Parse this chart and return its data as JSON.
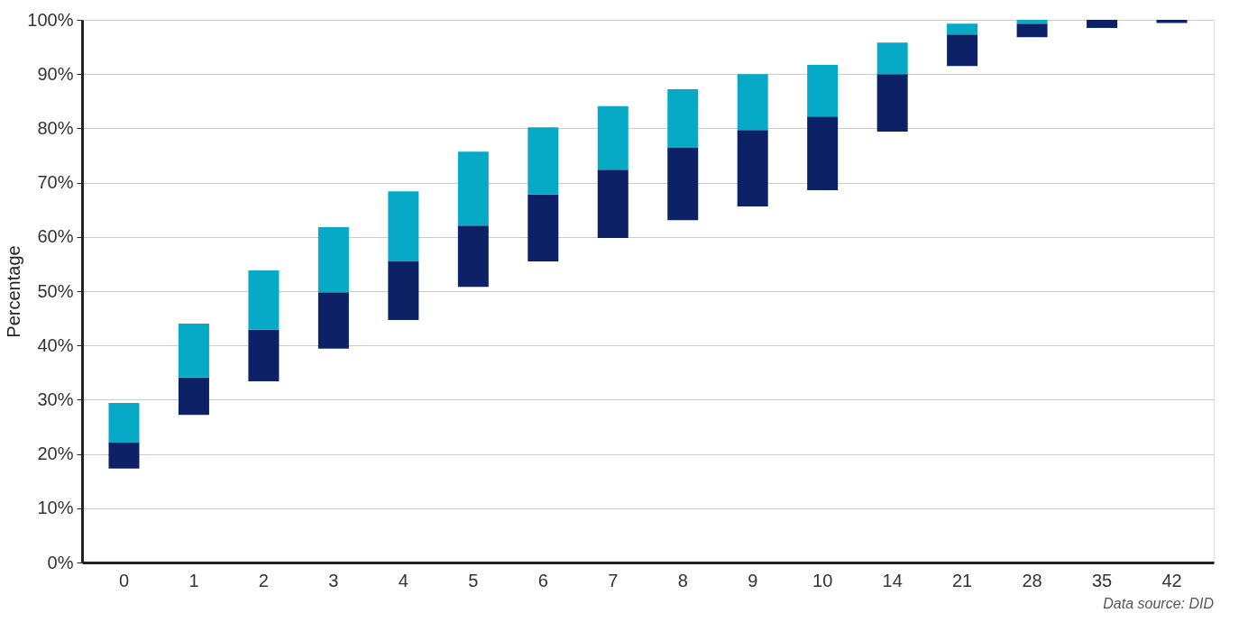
{
  "chart_data": {
    "type": "bar",
    "ylabel": "Percentage",
    "categories": [
      "0",
      "1",
      "2",
      "3",
      "4",
      "5",
      "6",
      "7",
      "8",
      "9",
      "10",
      "14",
      "21",
      "28",
      "35",
      "42"
    ],
    "series": [
      {
        "color": "#0d2167",
        "base": [
          17.3,
          27.2,
          33.4,
          39.4,
          44.7,
          50.8,
          55.5,
          59.8,
          63.1,
          65.6,
          68.6,
          79.4,
          91.5,
          96.8,
          98.5,
          99.4
        ],
        "values": [
          4.8,
          6.9,
          9.5,
          10.4,
          10.8,
          11.3,
          12.3,
          12.6,
          13.3,
          14.1,
          13.6,
          10.6,
          5.8,
          2.5,
          1.5,
          0.6
        ]
      },
      {
        "color": "#06aac7",
        "base": [
          22.1,
          34.1,
          42.9,
          49.8,
          55.5,
          62.1,
          67.8,
          72.4,
          76.4,
          79.7,
          82.2,
          90.0,
          97.3,
          99.3,
          null,
          null
        ],
        "values": [
          7.3,
          9.9,
          10.9,
          12.0,
          12.9,
          13.6,
          12.4,
          11.7,
          10.8,
          10.3,
          9.5,
          5.8,
          2.0,
          0.7,
          null,
          null
        ]
      }
    ],
    "ylim": [
      0,
      100
    ],
    "yticks": [
      {
        "value": 0,
        "label": "0%"
      },
      {
        "value": 10,
        "label": "10%"
      },
      {
        "value": 20,
        "label": "20%"
      },
      {
        "value": 30,
        "label": "30%"
      },
      {
        "value": 40,
        "label": "40%"
      },
      {
        "value": 50,
        "label": "50%"
      },
      {
        "value": 60,
        "label": "60%"
      },
      {
        "value": 70,
        "label": "70%"
      },
      {
        "value": 80,
        "label": "80%"
      },
      {
        "value": 90,
        "label": "90%"
      },
      {
        "value": 100,
        "label": "100%"
      }
    ],
    "grid": "y",
    "legend": false,
    "annotations": [
      "Data source: DID"
    ]
  }
}
